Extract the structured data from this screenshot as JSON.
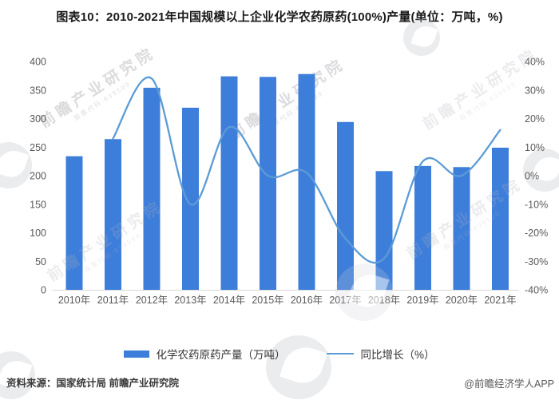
{
  "title": "图表10：2010-2021年中国规模以上企业化学农药原药(100%)产量(单位：万吨，%)",
  "legend": {
    "items": [
      {
        "label": "化学农药原药产量（万吨）",
        "swatch": "bar"
      },
      {
        "label": "同比增长（%）",
        "swatch": "line"
      }
    ]
  },
  "footer": {
    "source": "资料来源：国家统计局 前瞻产业研究院",
    "credit": "@前瞻经济学人APP"
  },
  "watermark": {
    "text": "前瞻产业研究院",
    "subtext": "股票代码:839599"
  },
  "colors": {
    "bar": "#3E7EDB",
    "line": "#5B9BD5",
    "axis_text": "#595959",
    "axis_line": "#D9D9D9",
    "title_text": "#1a1a1a"
  },
  "chart_data": {
    "type": "bar+line combo",
    "title": "2010-2021年中国规模以上企业化学农药原药(100%)产量",
    "categories": [
      "2010年",
      "2011年",
      "2012年",
      "2013年",
      "2014年",
      "2015年",
      "2016年",
      "2017年",
      "2018年",
      "2019年",
      "2020年",
      "2021年"
    ],
    "series": [
      {
        "name": "化学农药原药产量（万吨）",
        "type": "bar",
        "axis": "left",
        "values": [
          234,
          264,
          354,
          319,
          374,
          373,
          378,
          294,
          208,
          217,
          215,
          249
        ]
      },
      {
        "name": "同比增长（%）",
        "type": "line",
        "axis": "right",
        "values": [
          null,
          13,
          34,
          -10,
          17,
          0,
          1,
          -22,
          -29,
          5,
          0,
          16
        ]
      }
    ],
    "left_axis": {
      "min": 0,
      "max": 400,
      "step": 50,
      "ticks": [
        "400",
        "350",
        "300",
        "250",
        "200",
        "150",
        "100",
        "50",
        "0"
      ]
    },
    "right_axis": {
      "min": -40,
      "max": 40,
      "step": 10,
      "ticks": [
        "40%",
        "30%",
        "20%",
        "10%",
        "0%",
        "-10%",
        "-20%",
        "-30%",
        "-40%"
      ]
    },
    "grid": false,
    "legend_position": "bottom"
  }
}
